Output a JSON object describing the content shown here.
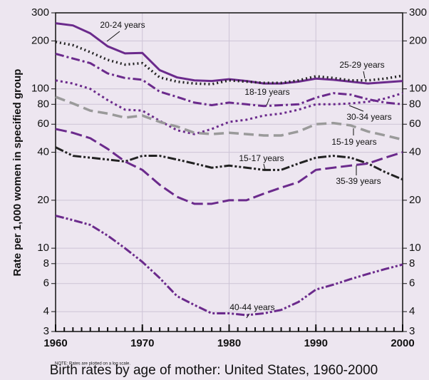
{
  "chart_data": {
    "type": "line",
    "title": "Birth rates by age of mother: United States, 1960-2000",
    "y_label": "Rate per 1,000 women in specified group",
    "note": "NOTE: Rates are plotted on a log scale.",
    "log_y": true,
    "grid": true,
    "xlim": [
      1960,
      2000
    ],
    "xticks": [
      1960,
      1970,
      1980,
      1990,
      2000
    ],
    "ylim": [
      3,
      300
    ],
    "yticks": [
      3,
      4,
      6,
      8,
      10,
      20,
      40,
      60,
      80,
      100,
      200,
      300
    ],
    "x": [
      1960,
      1962,
      1964,
      1966,
      1968,
      1970,
      1972,
      1974,
      1976,
      1978,
      1980,
      1982,
      1984,
      1986,
      1988,
      1990,
      1992,
      1994,
      1996,
      1998,
      2000
    ],
    "series": [
      {
        "name": "20-24 years",
        "color": "#6b2a8c",
        "values": [
          258,
          250,
          223,
          185,
          167,
          168,
          131,
          118,
          113,
          112,
          115,
          112,
          108,
          108,
          111,
          116,
          114,
          111,
          108,
          110,
          112
        ]
      },
      {
        "name": "25-29 years",
        "color": "#222222",
        "values": [
          197,
          188,
          170,
          152,
          142,
          145,
          118,
          111,
          108,
          107,
          113,
          111,
          109,
          109,
          113,
          120,
          117,
          113,
          113,
          116,
          121
        ]
      },
      {
        "name": "18-19 years",
        "color": "#6b2a8c",
        "values": [
          166,
          155,
          145,
          125,
          117,
          114,
          96,
          89,
          82,
          79,
          82,
          80,
          78,
          79,
          80,
          88,
          94,
          92,
          86,
          82,
          80
        ]
      },
      {
        "name": "30-34 years",
        "color": "#6b2a8c",
        "values": [
          113,
          108,
          100,
          85,
          74,
          73,
          63,
          55,
          52,
          56,
          62,
          64,
          68,
          70,
          74,
          80,
          80,
          81,
          83,
          87,
          94
        ]
      },
      {
        "name": "15-19 years",
        "color": "#9a9a9a",
        "values": [
          89,
          81,
          73,
          70,
          66,
          68,
          62,
          58,
          53,
          52,
          53,
          52,
          51,
          51,
          54,
          60,
          61,
          59,
          54,
          51,
          48
        ]
      },
      {
        "name": "15-17 years",
        "color": "#222222",
        "values": [
          43,
          38,
          37,
          36,
          35,
          38,
          38,
          36,
          34,
          32,
          33,
          32,
          31,
          31,
          34,
          37,
          38,
          37,
          34,
          30,
          27
        ]
      },
      {
        "name": "35-39 years",
        "color": "#6b2a8c",
        "values": [
          56,
          53,
          49,
          42,
          35,
          31,
          25,
          21,
          19,
          19,
          20,
          20,
          22,
          24,
          26,
          31,
          32,
          33,
          34,
          37,
          40
        ]
      },
      {
        "name": "40-44 years",
        "color": "#6b2a8c",
        "values": [
          16,
          15,
          14,
          12,
          10,
          8.2,
          6.5,
          5,
          4.4,
          3.9,
          3.9,
          3.8,
          3.9,
          4.1,
          4.6,
          5.5,
          5.9,
          6.4,
          6.9,
          7.4,
          7.9
        ]
      }
    ]
  }
}
